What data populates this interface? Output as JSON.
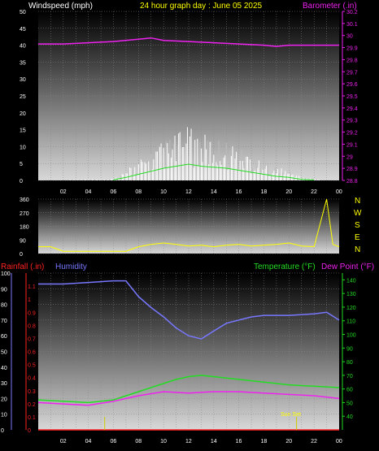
{
  "header": {
    "left_label": "Windspeed (mph)",
    "title": "24 hour graph day : June 05 2025",
    "right_label": "Barometer (.in)"
  },
  "lower_header": {
    "rain_label": "Rainfall (.in)",
    "humidity_label": "Humidity",
    "temp_label": "Temperature (°F)",
    "dew_label": "Dew Point (°F)"
  },
  "x_ticks": [
    "02",
    "04",
    "06",
    "08",
    "10",
    "12",
    "14",
    "16",
    "18",
    "20",
    "22",
    "00"
  ],
  "annotation": "Sun Set",
  "compass": [
    "N",
    "W",
    "S",
    "E",
    "N"
  ],
  "colors": {
    "wind": "#ffffff",
    "gust": "#bbbbbb",
    "avg_wind": "#22dd22",
    "barometer": "#ee22ee",
    "direction": "#ffff00",
    "humidity": "#7777ff",
    "temperature": "#22dd22",
    "dewpoint": "#ee22ee",
    "rain": "#ff2222",
    "sun": "#cccc00"
  },
  "chart_data": [
    {
      "type": "line",
      "series": [
        {
          "name": "Windspeed (mph)",
          "x": [
            0,
            6,
            7,
            8,
            9,
            10,
            11,
            12,
            13,
            14,
            15,
            16,
            17,
            18,
            19,
            20,
            21,
            22,
            23,
            24
          ],
          "y": [
            0,
            0.5,
            3,
            6,
            9,
            12,
            14,
            16,
            14,
            13,
            12,
            10,
            8,
            6,
            4,
            3,
            1,
            0.5,
            0,
            0
          ]
        },
        {
          "name": "Barometer (.in)",
          "x": [
            0,
            2,
            4,
            6,
            8,
            9,
            10,
            12,
            14,
            16,
            18,
            19,
            20,
            22,
            24
          ],
          "y": [
            29.93,
            29.93,
            29.94,
            29.95,
            29.97,
            29.98,
            29.96,
            29.95,
            29.94,
            29.93,
            29.92,
            29.91,
            29.92,
            29.92,
            29.92
          ]
        }
      ],
      "left_ylim": [
        0,
        50
      ],
      "left_yticks": [
        0,
        5,
        10,
        15,
        20,
        25,
        30,
        35,
        40,
        45,
        50
      ],
      "right_ylim": [
        28.8,
        30.2
      ],
      "right_yticks": [
        "28.8",
        "28.9",
        "29",
        "29.1",
        "29.2",
        "29.3",
        "29.4",
        "29.5",
        "29.6",
        "29.7",
        "29.8",
        "29.9",
        "30",
        "30.1",
        "30.2"
      ]
    },
    {
      "type": "line",
      "series": [
        {
          "name": "Wind direction",
          "x": [
            0,
            1,
            2,
            3,
            4,
            5,
            6,
            7,
            7.5,
            8,
            9,
            10,
            11,
            12,
            13,
            14,
            15,
            16,
            17,
            18,
            19,
            20,
            21,
            22,
            23,
            23.5,
            24
          ],
          "y": [
            45,
            45,
            15,
            15,
            15,
            15,
            15,
            15,
            30,
            45,
            60,
            70,
            60,
            50,
            55,
            45,
            55,
            60,
            50,
            55,
            60,
            70,
            50,
            45,
            360,
            60,
            45
          ]
        }
      ],
      "ylim": [
        0,
        360
      ],
      "yticks": [
        0,
        90,
        180,
        270,
        360
      ]
    },
    {
      "type": "line",
      "series": [
        {
          "name": "Humidity",
          "x": [
            0,
            2,
            4,
            6,
            7,
            8,
            9,
            10,
            11,
            12,
            13,
            14,
            15,
            16,
            17,
            18,
            20,
            22,
            23,
            24
          ],
          "y": [
            93,
            93,
            94,
            95,
            95,
            85,
            78,
            72,
            65,
            60,
            58,
            63,
            68,
            70,
            72,
            73,
            73,
            74,
            75,
            70
          ]
        },
        {
          "name": "Temperature (°F)",
          "x": [
            0,
            2,
            4,
            6,
            8,
            10,
            11,
            12,
            13,
            14,
            16,
            18,
            20,
            22,
            24
          ],
          "y": [
            52,
            51,
            50,
            52,
            58,
            64,
            67,
            69,
            70,
            69,
            67,
            65,
            63,
            62,
            61
          ]
        },
        {
          "name": "Dew Point (°F)",
          "x": [
            0,
            2,
            4,
            6,
            8,
            10,
            12,
            14,
            16,
            18,
            20,
            22,
            24
          ],
          "y": [
            50,
            49,
            48,
            51,
            55,
            58,
            57,
            58,
            58,
            57,
            56,
            55,
            53
          ]
        },
        {
          "name": "Rainfall (.in)",
          "x": [
            0,
            24
          ],
          "y": [
            0,
            0
          ]
        }
      ],
      "humidity_ylim": [
        0,
        100
      ],
      "humidity_yticks": [
        0,
        10,
        20,
        30,
        40,
        50,
        60,
        70,
        80,
        90,
        100
      ],
      "rain_ylim": [
        0,
        1.2
      ],
      "rain_yticks": [
        "0",
        "0.1",
        "0.2",
        "0.3",
        "0.4",
        "0.5",
        "0.6",
        "0.7",
        "0.8",
        "0.9",
        "1",
        "1.1"
      ],
      "temp_ylim": [
        30,
        145
      ],
      "temp_yticks": [
        40,
        50,
        60,
        70,
        80,
        90,
        100,
        110,
        120,
        130,
        140
      ]
    }
  ]
}
